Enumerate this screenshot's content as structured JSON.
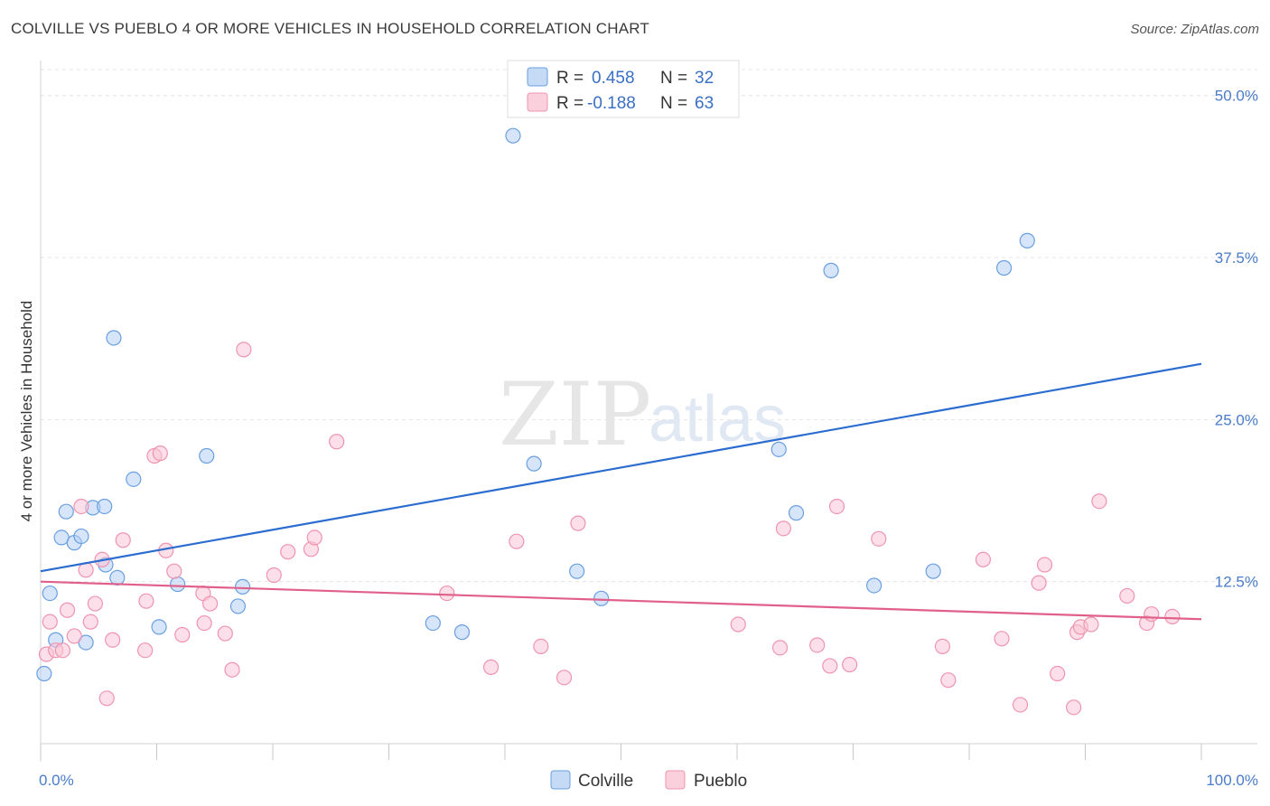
{
  "title": "COLVILLE VS PUEBLO 4 OR MORE VEHICLES IN HOUSEHOLD CORRELATION CHART",
  "source": "Source: ZipAtlas.com",
  "watermark": {
    "zip": "ZIP",
    "atlas": "atlas"
  },
  "legend": {
    "r_label": "R =",
    "n_label": "N =",
    "rows": [
      {
        "series": "Colville",
        "r": "0.458",
        "n": "32"
      },
      {
        "series": "Pueblo",
        "r": "-0.188",
        "n": "63"
      }
    ]
  },
  "bottom_legend": [
    "Colville",
    "Pueblo"
  ],
  "chart_data": {
    "type": "scatter",
    "title": "COLVILLE VS PUEBLO 4 OR MORE VEHICLES IN HOUSEHOLD CORRELATION CHART",
    "xlabel": "",
    "ylabel": "4 or more Vehicles in Household",
    "xlim": [
      0,
      100
    ],
    "ylim": [
      0,
      50
    ],
    "x_tick_labels": [
      "0.0%",
      "100.0%"
    ],
    "y_ticks": [
      12.5,
      25.0,
      37.5,
      50.0
    ],
    "y_tick_labels": [
      "12.5%",
      "25.0%",
      "37.5%",
      "50.0%"
    ],
    "colors": {
      "Colville": "#6a9fe0",
      "Pueblo": "#ef94b0",
      "Colville_line": "#2a6ccf",
      "Pueblo_line": "#e0608a"
    },
    "series": [
      {
        "name": "Colville",
        "trend": {
          "x": [
            0,
            100
          ],
          "y": [
            13.3,
            29.3
          ]
        },
        "points": [
          [
            0.3,
            5.4
          ],
          [
            0.8,
            11.6
          ],
          [
            1.3,
            8.0
          ],
          [
            1.8,
            15.9
          ],
          [
            2.2,
            17.9
          ],
          [
            2.9,
            15.5
          ],
          [
            3.5,
            16.0
          ],
          [
            3.9,
            7.8
          ],
          [
            4.5,
            18.2
          ],
          [
            5.5,
            18.3
          ],
          [
            5.6,
            13.8
          ],
          [
            6.3,
            31.3
          ],
          [
            6.6,
            12.8
          ],
          [
            8.0,
            20.4
          ],
          [
            10.2,
            9.0
          ],
          [
            11.8,
            12.3
          ],
          [
            14.3,
            22.2
          ],
          [
            17.0,
            10.6
          ],
          [
            17.4,
            12.1
          ],
          [
            33.8,
            9.3
          ],
          [
            36.3,
            8.6
          ],
          [
            40.7,
            46.9
          ],
          [
            42.5,
            21.6
          ],
          [
            46.2,
            13.3
          ],
          [
            48.3,
            11.2
          ],
          [
            63.6,
            22.7
          ],
          [
            65.1,
            17.8
          ],
          [
            68.1,
            36.5
          ],
          [
            71.8,
            12.2
          ],
          [
            76.9,
            13.3
          ],
          [
            83.0,
            36.7
          ],
          [
            85.0,
            38.8
          ]
        ]
      },
      {
        "name": "Pueblo",
        "trend": {
          "x": [
            0,
            100
          ],
          "y": [
            12.5,
            9.6
          ]
        },
        "points": [
          [
            0.5,
            6.9
          ],
          [
            0.8,
            9.4
          ],
          [
            1.3,
            7.2
          ],
          [
            1.9,
            7.2
          ],
          [
            2.3,
            10.3
          ],
          [
            2.9,
            8.3
          ],
          [
            3.5,
            18.3
          ],
          [
            3.9,
            13.4
          ],
          [
            4.3,
            9.4
          ],
          [
            4.7,
            10.8
          ],
          [
            5.3,
            14.2
          ],
          [
            5.7,
            3.5
          ],
          [
            6.2,
            8.0
          ],
          [
            7.1,
            15.7
          ],
          [
            9.0,
            7.2
          ],
          [
            9.1,
            11.0
          ],
          [
            9.8,
            22.2
          ],
          [
            10.3,
            22.4
          ],
          [
            10.8,
            14.9
          ],
          [
            11.5,
            13.3
          ],
          [
            12.2,
            8.4
          ],
          [
            14.0,
            11.6
          ],
          [
            14.1,
            9.3
          ],
          [
            14.6,
            10.8
          ],
          [
            15.9,
            8.5
          ],
          [
            16.5,
            5.7
          ],
          [
            17.5,
            30.4
          ],
          [
            20.1,
            13.0
          ],
          [
            21.3,
            14.8
          ],
          [
            23.3,
            15.0
          ],
          [
            23.6,
            15.9
          ],
          [
            25.5,
            23.3
          ],
          [
            35.0,
            11.6
          ],
          [
            38.8,
            5.9
          ],
          [
            41.0,
            15.6
          ],
          [
            43.1,
            7.5
          ],
          [
            45.1,
            5.1
          ],
          [
            46.3,
            17.0
          ],
          [
            60.1,
            9.2
          ],
          [
            63.7,
            7.4
          ],
          [
            64.0,
            16.6
          ],
          [
            66.9,
            7.6
          ],
          [
            68.0,
            6.0
          ],
          [
            68.6,
            18.3
          ],
          [
            69.7,
            6.1
          ],
          [
            72.2,
            15.8
          ],
          [
            77.7,
            7.5
          ],
          [
            78.2,
            4.9
          ],
          [
            81.2,
            14.2
          ],
          [
            82.8,
            8.1
          ],
          [
            84.4,
            3.0
          ],
          [
            86.0,
            12.4
          ],
          [
            86.5,
            13.8
          ],
          [
            87.6,
            5.4
          ],
          [
            89.0,
            2.8
          ],
          [
            89.3,
            8.6
          ],
          [
            89.6,
            9.0
          ],
          [
            90.5,
            9.2
          ],
          [
            91.2,
            18.7
          ],
          [
            93.6,
            11.4
          ],
          [
            95.3,
            9.3
          ],
          [
            95.7,
            10.0
          ],
          [
            97.5,
            9.8
          ]
        ]
      }
    ]
  }
}
